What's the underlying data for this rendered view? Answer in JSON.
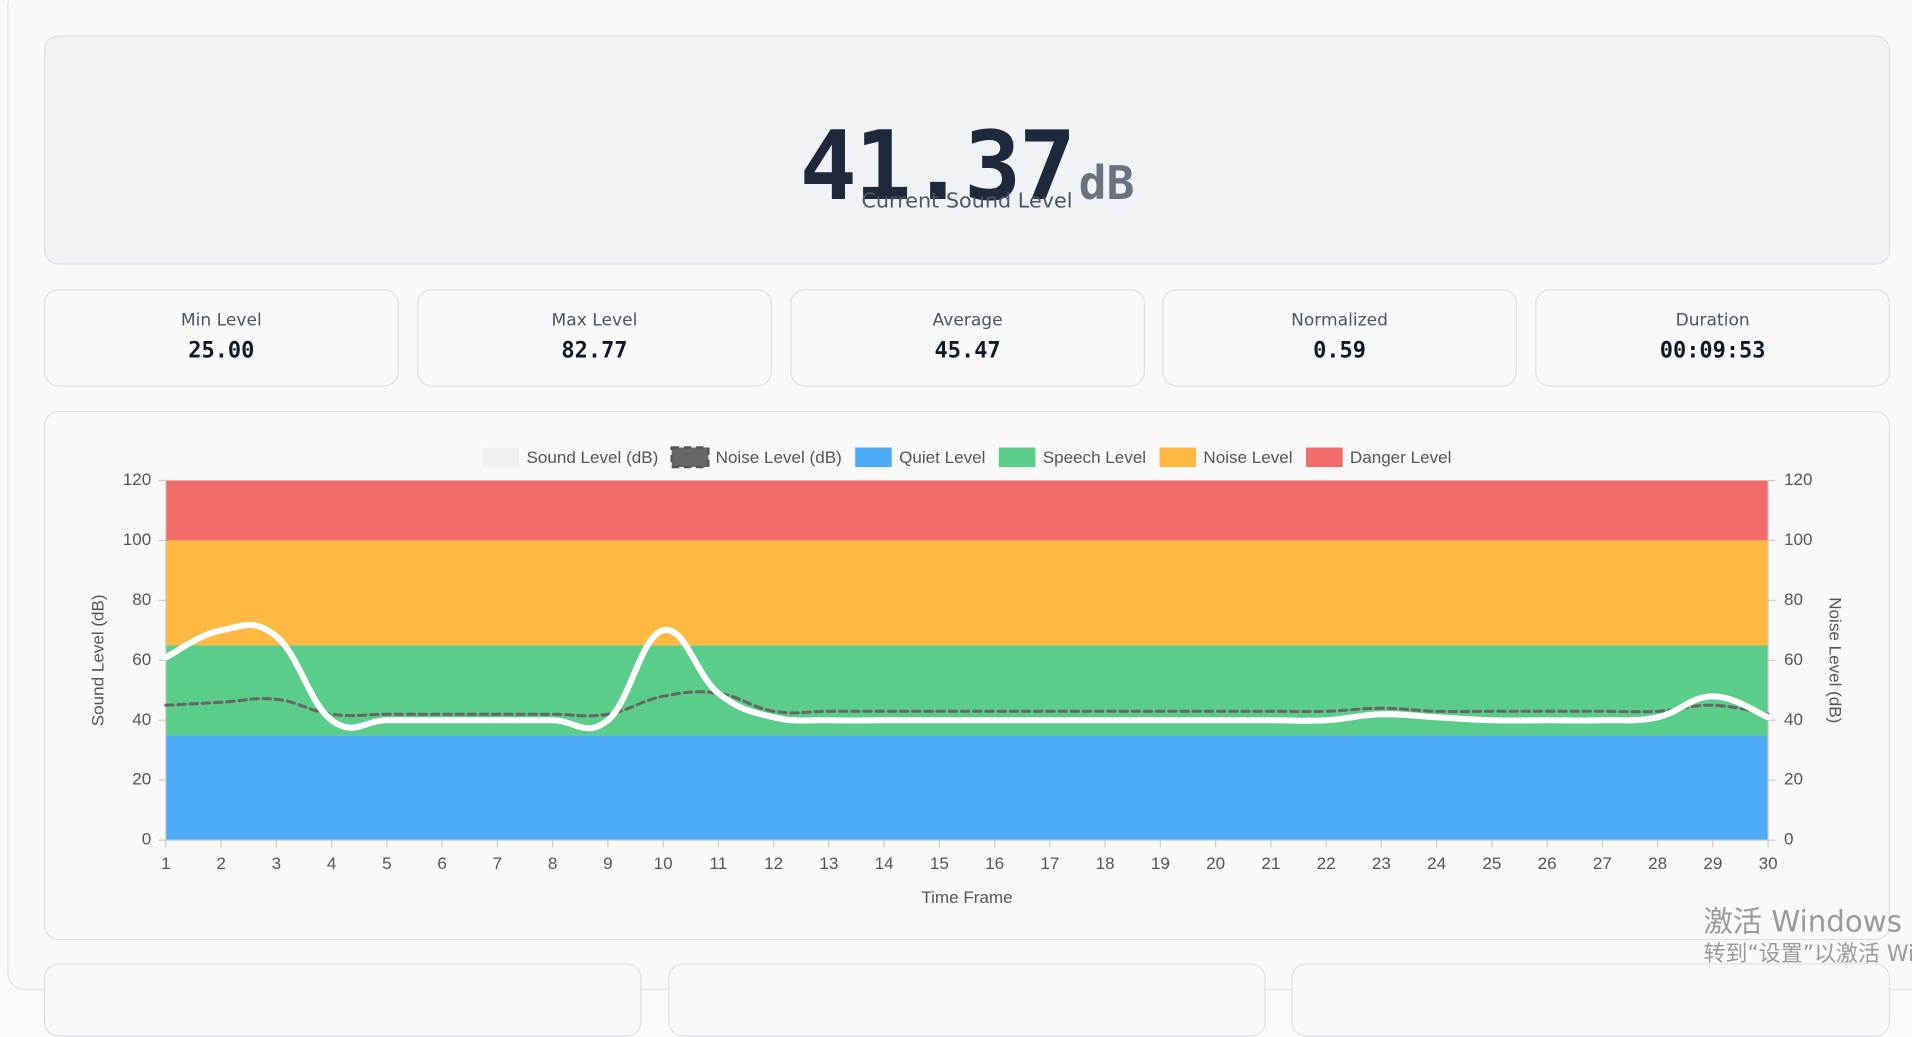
{
  "display": {
    "value": "41.37",
    "unit": "dB",
    "label": "Current Sound Level"
  },
  "stats": [
    {
      "label": "Min Level",
      "value": "25.00"
    },
    {
      "label": "Max Level",
      "value": "82.77"
    },
    {
      "label": "Average",
      "value": "45.47"
    },
    {
      "label": "Normalized",
      "value": "0.59"
    },
    {
      "label": "Duration",
      "value": "00:09:53"
    }
  ],
  "chart_data": {
    "type": "line",
    "xlabel": "Time Frame",
    "ylabel": "Sound Level (dB)",
    "y2label": "Noise Level (dB)",
    "x": [
      1,
      2,
      3,
      4,
      5,
      6,
      7,
      8,
      9,
      10,
      11,
      12,
      13,
      14,
      15,
      16,
      17,
      18,
      19,
      20,
      21,
      22,
      23,
      24,
      25,
      26,
      27,
      28,
      29,
      30
    ],
    "xlim": [
      1,
      30
    ],
    "xticks": [
      1,
      2,
      3,
      4,
      5,
      6,
      7,
      8,
      9,
      10,
      11,
      12,
      13,
      14,
      15,
      16,
      17,
      18,
      19,
      20,
      21,
      22,
      23,
      24,
      25,
      26,
      27,
      28,
      29,
      30
    ],
    "ylim": [
      0,
      120
    ],
    "yticks": [
      0,
      20,
      40,
      60,
      80,
      100,
      120
    ],
    "y2lim": [
      0,
      120
    ],
    "y2ticks": [
      0,
      20,
      40,
      60,
      80,
      100,
      120
    ],
    "series": [
      {
        "name": "Sound Level (dB)",
        "color": "#ffffff",
        "values": [
          61,
          70,
          68,
          40,
          40,
          40,
          40,
          40,
          40,
          70,
          49,
          41,
          40,
          40,
          40,
          40,
          40,
          40,
          40,
          40,
          40,
          40,
          42,
          41,
          40,
          40,
          40,
          41,
          48,
          41
        ]
      },
      {
        "name": "Noise Level (dB)",
        "color": "#666666",
        "dashed": true,
        "axis": "y2",
        "values": [
          45,
          46,
          47,
          42,
          42,
          42,
          42,
          42,
          42,
          48,
          49,
          43,
          43,
          43,
          43,
          43,
          43,
          43,
          43,
          43,
          43,
          43,
          44,
          43,
          43,
          43,
          43,
          43,
          45,
          42
        ]
      }
    ],
    "bands": [
      {
        "name": "Quiet Level",
        "color": "#4dabf5",
        "range": [
          0,
          35
        ]
      },
      {
        "name": "Speech Level",
        "color": "#59cd89",
        "range": [
          35,
          65
        ]
      },
      {
        "name": "Noise Level",
        "color": "#ffb942",
        "range": [
          65,
          100
        ]
      },
      {
        "name": "Danger Level",
        "color": "#f26b6b",
        "range": [
          100,
          120
        ]
      }
    ]
  },
  "watermark": [
    "激活 Windows",
    "转到“设置”以激活 Wi"
  ]
}
